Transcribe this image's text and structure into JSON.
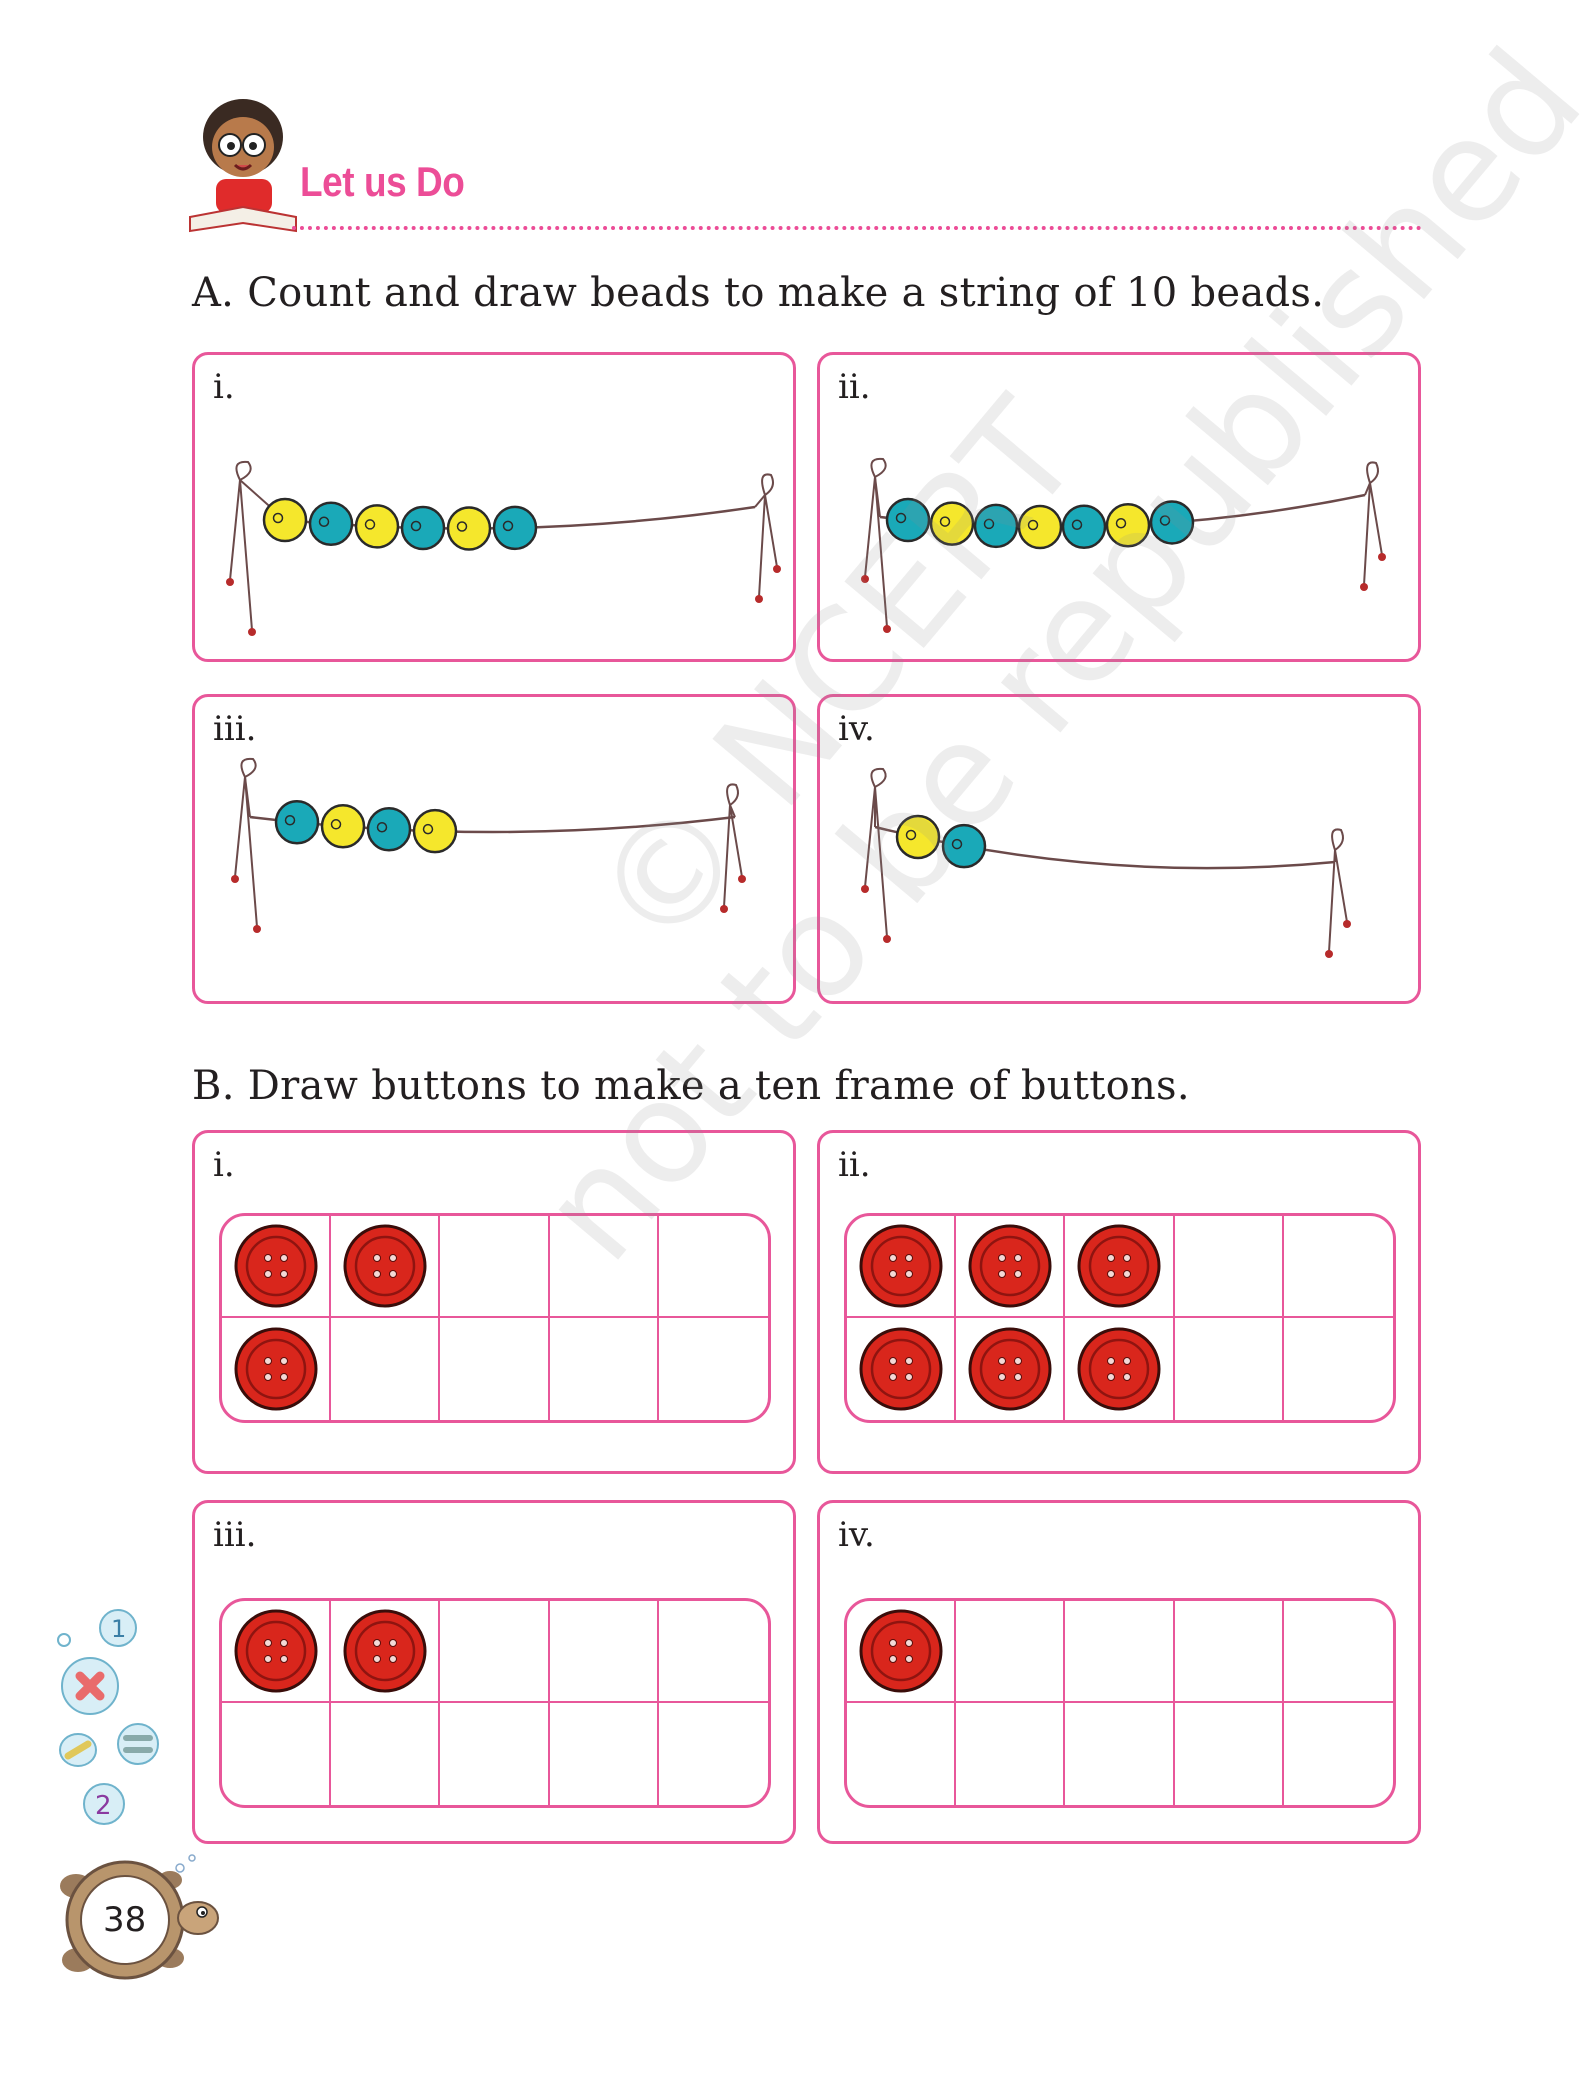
{
  "header": {
    "title": "Let us Do"
  },
  "section_a": {
    "instruction": "A.  Count and draw beads to make a string of 10 beads.",
    "colors": {
      "yellow": "#f5e72c",
      "teal": "#1aa9b8",
      "string": "#6b4a4a"
    },
    "cards": [
      {
        "label": "i.",
        "beads": [
          "yellow",
          "teal",
          "yellow",
          "teal",
          "yellow",
          "teal"
        ]
      },
      {
        "label": "ii.",
        "beads": [
          "teal",
          "yellow",
          "teal",
          "yellow",
          "teal",
          "yellow",
          "teal"
        ]
      },
      {
        "label": "iii.",
        "beads": [
          "teal",
          "yellow",
          "teal",
          "yellow"
        ]
      },
      {
        "label": "iv.",
        "beads": [
          "yellow",
          "teal"
        ]
      }
    ]
  },
  "section_b": {
    "instruction": "B.  Draw buttons to make a ten frame of buttons.",
    "button_color": "#d9261c",
    "cards": [
      {
        "label": "i.",
        "filled": [
          1,
          1,
          0,
          0,
          0,
          1,
          0,
          0,
          0,
          0
        ]
      },
      {
        "label": "ii.",
        "filled": [
          1,
          1,
          1,
          0,
          0,
          1,
          1,
          1,
          0,
          0
        ]
      },
      {
        "label": "iii.",
        "filled": [
          1,
          1,
          0,
          0,
          0,
          0,
          0,
          0,
          0,
          0
        ]
      },
      {
        "label": "iv.",
        "filled": [
          1,
          0,
          0,
          0,
          0,
          0,
          0,
          0,
          0,
          0
        ]
      }
    ]
  },
  "watermark": {
    "line1": "© NCERT",
    "line2": "not to be republished"
  },
  "footer": {
    "page_number": "38"
  }
}
